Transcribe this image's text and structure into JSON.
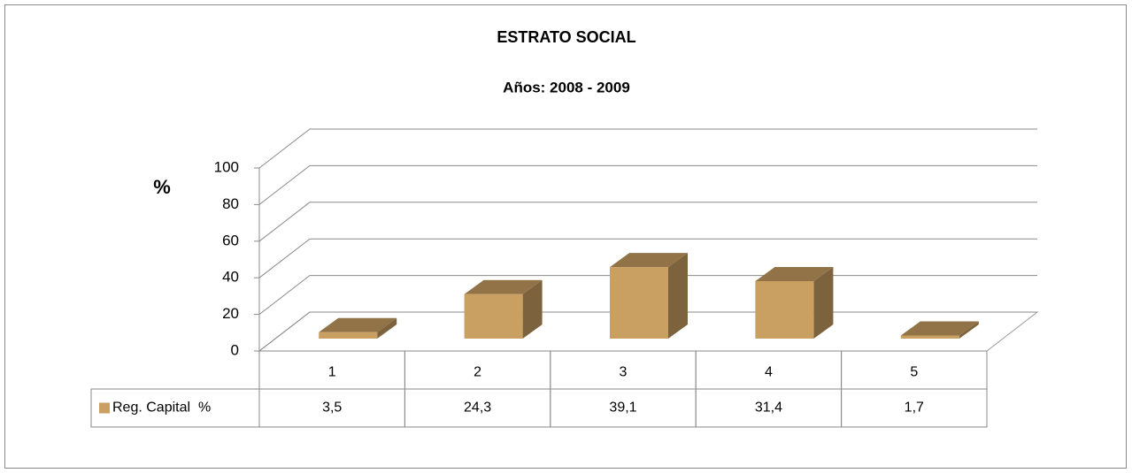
{
  "chart_data": {
    "type": "bar3d",
    "title": "ESTRATO SOCIAL",
    "subtitle": "Años: 2008 - 2009",
    "y_label": "%",
    "categories": [
      "1",
      "2",
      "3",
      "4",
      "5"
    ],
    "series": [
      {
        "name": "Reg. Capital  %",
        "color": "#c9a062",
        "values": [
          3.5,
          24.3,
          39.1,
          31.4,
          1.7
        ],
        "value_labels": [
          "3,5",
          "24,3",
          "39,1",
          "31,4",
          "1,7"
        ]
      }
    ],
    "ylim": [
      0,
      100
    ],
    "yticks": [
      0,
      20,
      40,
      60,
      80,
      100
    ],
    "grid": true
  }
}
